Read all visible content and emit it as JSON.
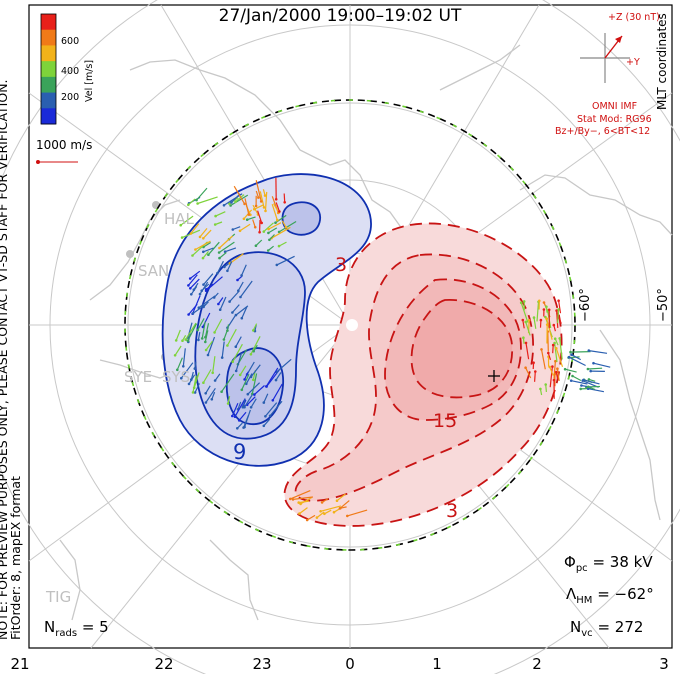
{
  "title": "27/Jan/2000 19:00–19:02 UT",
  "note_lines": [
    "NOTE: FOR PREVIEW PURPOSES ONLY, PLEASE CONTACT VT-SD STAFF FOR VERIFICATION.",
    "FitOrder: 8, mapEX format"
  ],
  "coords_label": "MLT coordinates",
  "velocity_scale": {
    "unit": "Vel [m/s]",
    "ticks": [
      "600",
      "400",
      "200"
    ],
    "colors": [
      "#e8201a",
      "#f07a18",
      "#f2b21a",
      "#7ed33a",
      "#3aa35a",
      "#2a5fb0",
      "#1a2ad8"
    ]
  },
  "vector_scale_label": "1000 m/s",
  "imf": {
    "z_label": "+Z (30 nT)",
    "y_label": "+Y",
    "source": "OMNI IMF",
    "model": "Stat Mod: RG96",
    "bin": "Bz+/By−, 6<BT<12",
    "color": "#d01010"
  },
  "stats": {
    "phi_symbol": "Φ",
    "phi_sub": "pc",
    "phi_value": "= 38 kV",
    "lambda_symbol": "Λ",
    "lambda_sub": "HM",
    "lambda_value": "= −62°",
    "nvc_symbol": "N",
    "nvc_sub": "vc",
    "nvc_value": "= 272",
    "nrads_symbol": "N",
    "nrads_sub": "rads",
    "nrads_value": "= 5"
  },
  "mlt_ticks": [
    "21",
    "22",
    "23",
    "0",
    "1",
    "2",
    "3"
  ],
  "lat_labels": [
    "−60°",
    "−50°"
  ],
  "contour_labels": {
    "neg": "9",
    "pos_a": "3",
    "pos_b": "15",
    "pos_c": "3"
  },
  "stations": [
    "HAL",
    "SAN",
    "SYE",
    "SYS",
    "TIG"
  ],
  "colors": {
    "negative": "#1030b0",
    "negative_fill": "#d8dcf2",
    "positive": "#c81414",
    "positive_fill": "#f6d0d0",
    "land": "#c8c8c8",
    "grid": "#c0c0c0"
  }
}
